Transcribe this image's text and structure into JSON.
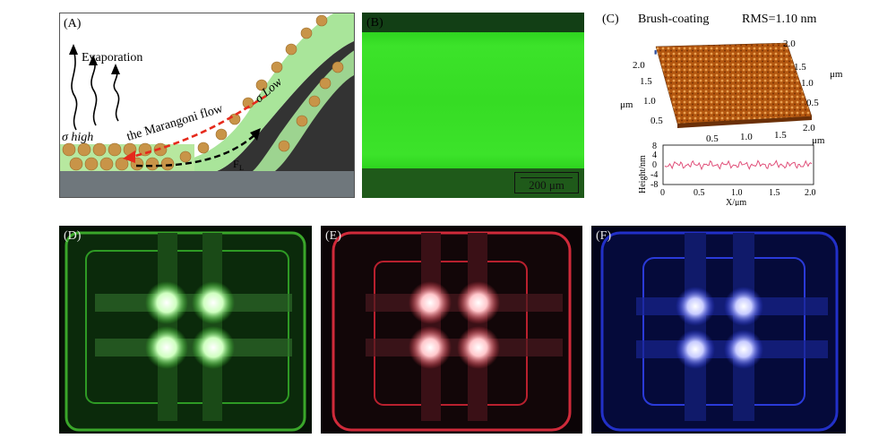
{
  "panel_a": {
    "label": "(A)",
    "evaporation": "Evaporation",
    "sigma_high": "σ high",
    "sigma_low": "σ Low",
    "marangoni": "the Marangoni flow",
    "force": "F",
    "force_sub": "L"
  },
  "panel_b": {
    "label": "(B)",
    "scale_bar": "200 μm"
  },
  "panel_c": {
    "label": "(C)",
    "title_method": "Brush-coating",
    "title_rms": "RMS=1.10 nm",
    "surface_axis_left": [
      "2.0",
      "1.5",
      "1.0",
      "0.5"
    ],
    "surface_axis_right": [
      "2.0",
      "1.5",
      "1.0",
      "0.5"
    ],
    "surface_axis_bottom": [
      "0.5",
      "1.0",
      "1.5",
      "2.0"
    ],
    "unit_um": "μm",
    "profile": {
      "ylabel": "Height/nm",
      "xlabel": "X/μm",
      "y_ticks": [
        "8",
        "4",
        "0",
        "-4",
        "-8"
      ],
      "x_ticks": [
        "0",
        "0.5",
        "1.0",
        "1.5",
        "2.0"
      ]
    }
  },
  "panel_d": {
    "label": "(D)"
  },
  "panel_e": {
    "label": "(E)"
  },
  "panel_f": {
    "label": "(F)"
  },
  "colors": {
    "green_film": "#35e021",
    "red_emission": "#ff3a4a",
    "blue_emission": "#2a3cff",
    "afm_surface": "#b3560f",
    "profile_line": "#e0507a"
  }
}
